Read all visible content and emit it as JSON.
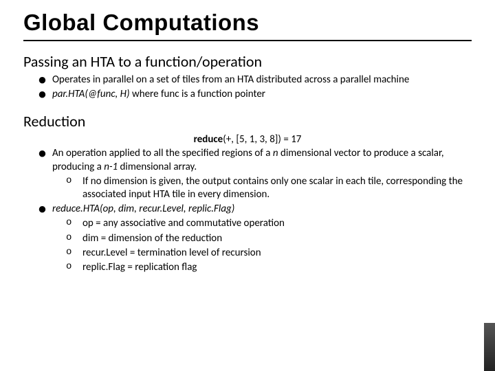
{
  "title": "Global Computations",
  "section1": {
    "heading": "Passing an HTA to a function/operation",
    "b1": "Operates in parallel on a set of tiles from an HTA distributed across a parallel machine",
    "b2_i": "par.HTA(@func, H) ",
    "b2_rest": "where func is a function pointer"
  },
  "section2": {
    "heading": "Reduction",
    "reduce_b": "reduce",
    "reduce_rest": "(+, [5, 1, 3, 8]) = 17",
    "b1a": "An operation applied to all the specified regions of a ",
    "b1_n1": "n",
    "b1b": " dimensional vector to produce a scalar, producing a ",
    "b1_n2": "n-1",
    "b1c": " dimensional array.",
    "b1_s1": "If no dimension is given, the output contains only one scalar in each tile, corresponding the associated input HTA tile in every dimension.",
    "b2_i": "reduce.HTA(op, dim, recur.Level, replic.Flag)",
    "b2_s1": "op = any associative and commutative operation",
    "b2_s2": "dim = dimension of the reduction",
    "b2_s3": "recur.Level = termination level of recursion",
    "b2_s4": "replic.Flag = replication flag"
  }
}
